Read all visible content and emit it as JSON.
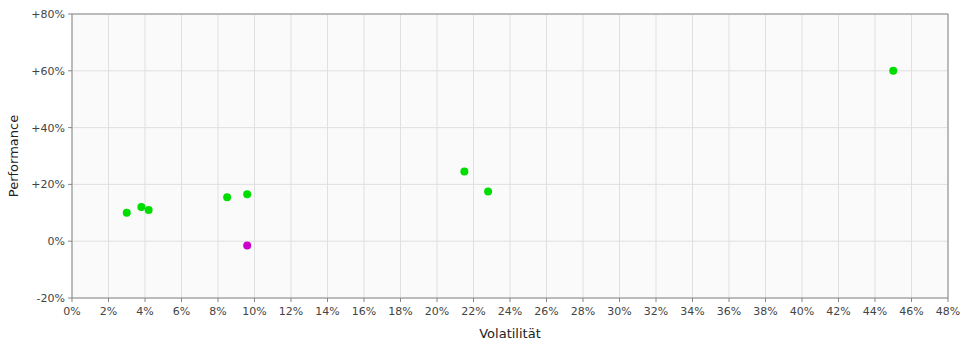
{
  "chart_data": {
    "type": "scatter",
    "xlabel": "Volatilität",
    "ylabel": "Performance",
    "xlim": [
      0.0,
      0.48
    ],
    "ylim": [
      -0.2,
      0.8
    ],
    "xticks": [
      {
        "value": 0.0,
        "label": "0%"
      },
      {
        "value": 0.02,
        "label": "2%"
      },
      {
        "value": 0.04,
        "label": "4%"
      },
      {
        "value": 0.06,
        "label": "6%"
      },
      {
        "value": 0.08,
        "label": "8%"
      },
      {
        "value": 0.1,
        "label": "10%"
      },
      {
        "value": 0.12,
        "label": "12%"
      },
      {
        "value": 0.14,
        "label": "14%"
      },
      {
        "value": 0.16,
        "label": "16%"
      },
      {
        "value": 0.18,
        "label": "18%"
      },
      {
        "value": 0.2,
        "label": "20%"
      },
      {
        "value": 0.22,
        "label": "22%"
      },
      {
        "value": 0.24,
        "label": "24%"
      },
      {
        "value": 0.26,
        "label": "26%"
      },
      {
        "value": 0.28,
        "label": "28%"
      },
      {
        "value": 0.3,
        "label": "30%"
      },
      {
        "value": 0.32,
        "label": "32%"
      },
      {
        "value": 0.34,
        "label": "34%"
      },
      {
        "value": 0.36,
        "label": "36%"
      },
      {
        "value": 0.38,
        "label": "38%"
      },
      {
        "value": 0.4,
        "label": "40%"
      },
      {
        "value": 0.42,
        "label": "42%"
      },
      {
        "value": 0.44,
        "label": "44%"
      },
      {
        "value": 0.46,
        "label": "46%"
      },
      {
        "value": 0.48,
        "label": "48%"
      }
    ],
    "yticks": [
      {
        "value": -0.2,
        "label": "-20%"
      },
      {
        "value": 0.0,
        "label": "0%"
      },
      {
        "value": 0.2,
        "label": "+20%"
      },
      {
        "value": 0.4,
        "label": "+40%"
      },
      {
        "value": 0.6,
        "label": "+60%"
      },
      {
        "value": 0.8,
        "label": "+80%"
      }
    ],
    "grid": true,
    "series": [
      {
        "color": "#00dd00",
        "x": [
          0.03,
          0.038,
          0.042,
          0.085,
          0.096,
          0.215,
          0.228,
          0.45
        ],
        "values": [
          0.1,
          0.12,
          0.11,
          0.155,
          0.165,
          0.245,
          0.175,
          0.6
        ]
      },
      {
        "color": "#cc00cc",
        "x": [
          0.096
        ],
        "values": [
          -0.015
        ]
      }
    ]
  }
}
